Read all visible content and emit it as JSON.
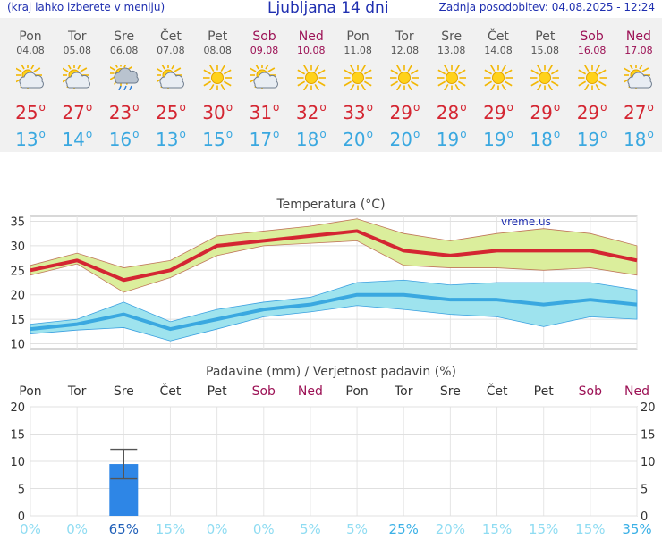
{
  "header": {
    "menu_hint": "(kraj lahko izberete v meniju)",
    "title": "Ljubljana 14 dni",
    "updated": "Zadnja posodobitev: 04.08.2025 - 12:24"
  },
  "colors": {
    "max_temp": "#d42632",
    "min_temp": "#3aa8e0",
    "weekend": "#9c1155",
    "precip_bar": "#2e86e6"
  },
  "days": [
    {
      "name": "Pon",
      "date": "04.08",
      "icon": "sun-cloud-icon",
      "max": "25",
      "min": "13",
      "weekend": false
    },
    {
      "name": "Tor",
      "date": "05.08",
      "icon": "sun-cloud-icon",
      "max": "27",
      "min": "14",
      "weekend": false
    },
    {
      "name": "Sre",
      "date": "06.08",
      "icon": "sun-cloud-rain-icon",
      "max": "23",
      "min": "16",
      "weekend": false
    },
    {
      "name": "Čet",
      "date": "07.08",
      "icon": "sun-cloud-icon",
      "max": "25",
      "min": "13",
      "weekend": false
    },
    {
      "name": "Pet",
      "date": "08.08",
      "icon": "sun-icon",
      "max": "30",
      "min": "15",
      "weekend": false
    },
    {
      "name": "Sob",
      "date": "09.08",
      "icon": "sun-cloud-icon",
      "max": "31",
      "min": "17",
      "weekend": true
    },
    {
      "name": "Ned",
      "date": "10.08",
      "icon": "sun-icon",
      "max": "32",
      "min": "18",
      "weekend": true
    },
    {
      "name": "Pon",
      "date": "11.08",
      "icon": "sun-icon",
      "max": "33",
      "min": "20",
      "weekend": false
    },
    {
      "name": "Tor",
      "date": "12.08",
      "icon": "sun-icon",
      "max": "29",
      "min": "20",
      "weekend": false
    },
    {
      "name": "Sre",
      "date": "13.08",
      "icon": "sun-icon",
      "max": "28",
      "min": "19",
      "weekend": false
    },
    {
      "name": "Čet",
      "date": "14.08",
      "icon": "sun-icon",
      "max": "29",
      "min": "19",
      "weekend": false
    },
    {
      "name": "Pet",
      "date": "15.08",
      "icon": "sun-icon",
      "max": "29",
      "min": "18",
      "weekend": false
    },
    {
      "name": "Sob",
      "date": "16.08",
      "icon": "sun-icon",
      "max": "29",
      "min": "19",
      "weekend": true
    },
    {
      "name": "Ned",
      "date": "17.08",
      "icon": "sun-cloud-icon",
      "max": "27",
      "min": "18",
      "weekend": true
    }
  ],
  "temp_chart": {
    "title": "Temperatura (°C)",
    "watermark": "vreme.us",
    "ylim": [
      9,
      36
    ],
    "yticks": [
      10,
      15,
      20,
      25,
      30,
      35
    ],
    "max": [
      25,
      27,
      23,
      25,
      30,
      31,
      32,
      33,
      29,
      28,
      29,
      29,
      29,
      27
    ],
    "max_upper": [
      26,
      28.5,
      25.5,
      27,
      32,
      33,
      34,
      35.5,
      32.5,
      31,
      32.5,
      33.5,
      32.5,
      30
    ],
    "max_lower": [
      24,
      26.3,
      20.5,
      23.5,
      28,
      30,
      30.5,
      31,
      26,
      25.5,
      25.5,
      25,
      25.5,
      24
    ],
    "min": [
      13,
      14,
      16,
      13,
      15,
      17,
      18,
      20,
      20,
      19,
      19,
      18,
      19,
      18
    ],
    "min_upper": [
      14,
      15,
      18.5,
      14.5,
      17,
      18.5,
      19.5,
      22.5,
      23,
      22,
      22.5,
      22.5,
      22.5,
      21
    ],
    "min_lower": [
      12,
      12.8,
      13.3,
      10.6,
      13,
      15.5,
      16.5,
      17.8,
      17,
      16,
      15.5,
      13.5,
      15.5,
      15
    ]
  },
  "precip_chart": {
    "title": "Padavine (mm) / Verjetnost padavin (%)",
    "ylim": [
      0,
      20
    ],
    "yticks": [
      0,
      5,
      10,
      15,
      20
    ],
    "days": [
      "Pon",
      "Tor",
      "Sre",
      "Čet",
      "Pet",
      "Sob",
      "Ned",
      "Pon",
      "Tor",
      "Sre",
      "Čet",
      "Pet",
      "Sob",
      "Ned"
    ],
    "weekend": [
      false,
      false,
      false,
      false,
      false,
      true,
      true,
      false,
      false,
      false,
      false,
      false,
      true,
      true
    ],
    "amount_mm": [
      0,
      0,
      9.5,
      0,
      0,
      0,
      0,
      0,
      0,
      0,
      0,
      0,
      0,
      0
    ],
    "error_high": [
      null,
      null,
      12.2,
      null,
      null,
      null,
      null,
      null,
      null,
      null,
      null,
      null,
      null,
      null
    ],
    "error_low": [
      null,
      null,
      6.8,
      null,
      null,
      null,
      null,
      null,
      null,
      null,
      null,
      null,
      null,
      null
    ],
    "probability": [
      "0%",
      "0%",
      "65%",
      "15%",
      "0%",
      "0%",
      "5%",
      "5%",
      "25%",
      "20%",
      "15%",
      "15%",
      "15%",
      "35%"
    ],
    "prob_values": [
      0,
      0,
      65,
      15,
      0,
      0,
      5,
      5,
      25,
      20,
      15,
      15,
      15,
      35
    ]
  }
}
